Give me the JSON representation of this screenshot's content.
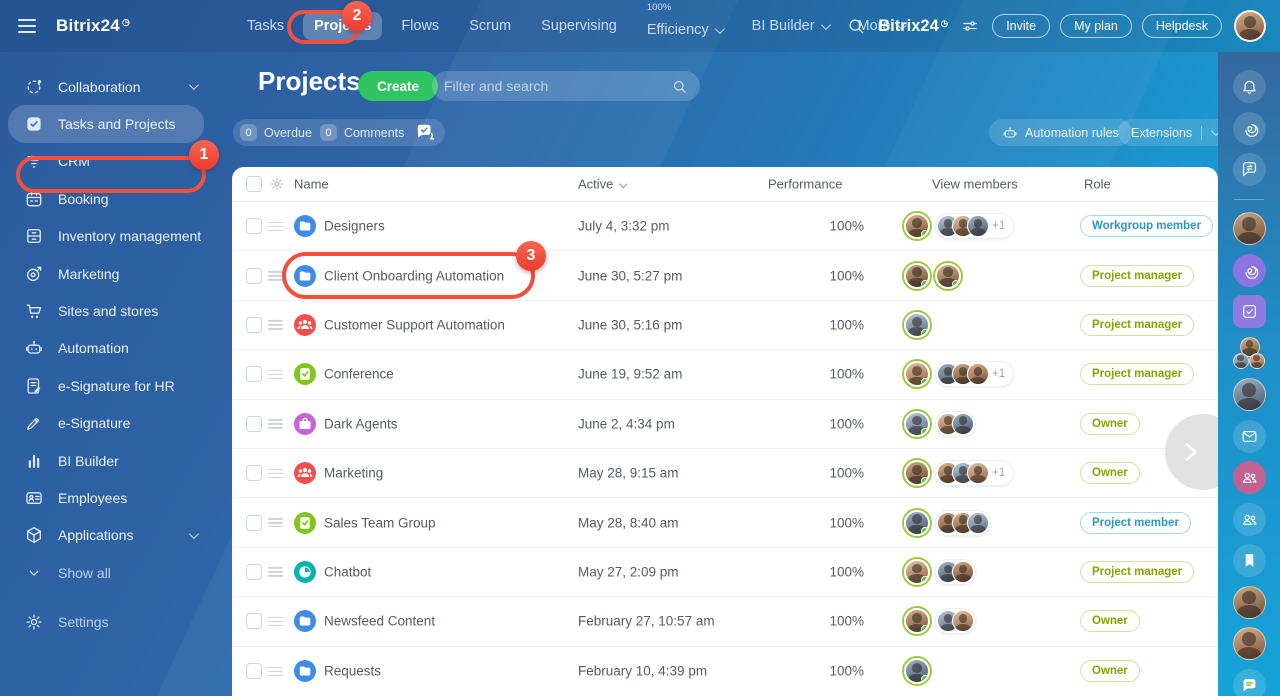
{
  "topbar": {
    "brand": "Bitrix24",
    "brand_mark": "◷",
    "tabs": [
      {
        "label": "Tasks"
      },
      {
        "label": "Projects",
        "active": true
      },
      {
        "label": "Flows"
      },
      {
        "label": "Scrum"
      },
      {
        "label": "Supervising"
      },
      {
        "label": "Efficiency",
        "sup": "100%",
        "chevron": true
      },
      {
        "label": "BI Builder",
        "chevron": true
      },
      {
        "label": "More",
        "chevron": true
      }
    ],
    "search_brand": "Bitrix24",
    "buttons": [
      {
        "label": "Invite"
      },
      {
        "label": "My plan"
      },
      {
        "label": "Helpdesk"
      }
    ]
  },
  "sidebar": {
    "items": [
      {
        "label": "Collaboration",
        "icon": "collab-icon",
        "chevron": true
      },
      {
        "label": "Tasks and Projects",
        "icon": "tasks-icon",
        "active": true
      },
      {
        "label": "CRM",
        "icon": "crm-icon"
      },
      {
        "label": "Booking",
        "icon": "calendar-icon"
      },
      {
        "label": "Inventory management",
        "icon": "inventory-icon"
      },
      {
        "label": "Marketing",
        "icon": "target-icon"
      },
      {
        "label": "Sites and stores",
        "icon": "cart-icon"
      },
      {
        "label": "Automation",
        "icon": "robot-icon"
      },
      {
        "label": "e-Signature for HR",
        "icon": "doc-pen-icon"
      },
      {
        "label": "e-Signature",
        "icon": "pen-icon"
      },
      {
        "label": "BI Builder",
        "icon": "bars-icon"
      },
      {
        "label": "Employees",
        "icon": "id-card-icon"
      },
      {
        "label": "Applications",
        "icon": "cube-icon",
        "chevron": true
      },
      {
        "label": "Show all",
        "icon": "chevron-down-icon",
        "muted": true
      }
    ],
    "settings": {
      "label": "Settings",
      "icon": "gear-icon"
    }
  },
  "header": {
    "title": "Projects",
    "create_label": "Create",
    "filter_placeholder": "Filter and search",
    "counters": [
      {
        "count": "0",
        "label": "Overdue"
      },
      {
        "count": "0",
        "label": "Comments"
      }
    ],
    "automation_button": "Automation rules",
    "extensions_button": "Extensions"
  },
  "table": {
    "columns": [
      "Name",
      "Active",
      "Performance",
      "View members",
      "Role"
    ],
    "rows": [
      {
        "name": "Designers",
        "icon": "folder",
        "icon_color": "#3F8CE4",
        "active": "July 4, 3:32 pm",
        "performance": "100%",
        "members": {
          "leads": 1,
          "pill": 3,
          "plus": "+1"
        },
        "role": {
          "label": "Workgroup member",
          "type": "blue"
        }
      },
      {
        "name": "Client Onboarding Automation",
        "icon": "folder",
        "icon_color": "#3F8CE4",
        "active": "June 30, 5:27 pm",
        "performance": "100%",
        "members": {
          "leads": 2,
          "pill": 0,
          "plus": ""
        },
        "role": {
          "label": "Project manager",
          "type": "green"
        }
      },
      {
        "name": "Customer Support Automation",
        "icon": "people",
        "icon_color": "#F25050",
        "active": "June 30, 5:16 pm",
        "performance": "100%",
        "members": {
          "leads": 1,
          "pill": 0,
          "plus": ""
        },
        "role": {
          "label": "Project manager",
          "type": "green"
        }
      },
      {
        "name": "Conference",
        "icon": "clipboard",
        "icon_color": "#82C51D",
        "active": "June 19, 9:52 am",
        "performance": "100%",
        "members": {
          "leads": 1,
          "pill": 3,
          "plus": "+1"
        },
        "role": {
          "label": "Project manager",
          "type": "green"
        }
      },
      {
        "name": "Dark Agents",
        "icon": "briefcase",
        "icon_color": "#C963D8",
        "active": "June 2, 4:34 pm",
        "performance": "100%",
        "members": {
          "leads": 1,
          "pill": 2,
          "plus": ""
        },
        "role": {
          "label": "Owner",
          "type": "green"
        }
      },
      {
        "name": "Marketing",
        "icon": "people",
        "icon_color": "#F25050",
        "active": "May 28, 9:15 am",
        "performance": "100%",
        "members": {
          "leads": 1,
          "pill": 3,
          "plus": "+1"
        },
        "role": {
          "label": "Owner",
          "type": "green"
        }
      },
      {
        "name": "Sales Team Group",
        "icon": "clipboard",
        "icon_color": "#82C51D",
        "active": "May 28, 8:40 am",
        "performance": "100%",
        "members": {
          "leads": 1,
          "pill": 3,
          "plus": ""
        },
        "role": {
          "label": "Project member",
          "type": "blue"
        }
      },
      {
        "name": "Chatbot",
        "icon": "clock",
        "icon_color": "#00B5AD",
        "active": "May 27, 2:09 pm",
        "performance": "100%",
        "members": {
          "leads": 1,
          "pill": 2,
          "plus": ""
        },
        "role": {
          "label": "Project manager",
          "type": "green"
        }
      },
      {
        "name": "Newsfeed Content",
        "icon": "folder",
        "icon_color": "#3F8CE4",
        "active": "February 27, 10:57 am",
        "performance": "100%",
        "members": {
          "leads": 1,
          "pill": 2,
          "plus": ""
        },
        "role": {
          "label": "Owner",
          "type": "green"
        }
      },
      {
        "name": "Requests",
        "icon": "folder",
        "icon_color": "#3F8CE4",
        "active": "February 10, 4:39 pm",
        "performance": "100%",
        "members": {
          "leads": 1,
          "pill": 0,
          "plus": ""
        },
        "role": {
          "label": "Owner",
          "type": "green"
        }
      }
    ]
  },
  "right_rail": {
    "items": [
      {
        "type": "icon",
        "icon": "bell-icon"
      },
      {
        "type": "icon",
        "icon": "copilot-icon"
      },
      {
        "type": "icon",
        "icon": "chat-arrows-icon"
      },
      {
        "type": "divider"
      },
      {
        "type": "avatar"
      },
      {
        "type": "icon-purple",
        "icon": "copilot-icon"
      },
      {
        "type": "icon-purplesq",
        "icon": "check-square-icon"
      },
      {
        "type": "avatar-cluster"
      },
      {
        "type": "avatar"
      },
      {
        "type": "icon",
        "icon": "mail-icon"
      },
      {
        "type": "icon-pink",
        "icon": "people-icon"
      },
      {
        "type": "icon",
        "icon": "people-icon"
      },
      {
        "type": "icon",
        "icon": "bookmark-icon"
      },
      {
        "type": "avatar"
      },
      {
        "type": "avatar"
      },
      {
        "type": "icon",
        "icon": "chat-lines-icon"
      }
    ]
  },
  "annotations": [
    {
      "number": "1",
      "target": "sidebar Tasks and Projects"
    },
    {
      "number": "2",
      "target": "top nav Projects"
    },
    {
      "number": "3",
      "target": "row Client Onboarding Automation"
    }
  ],
  "theme": {
    "annotation_red": "#F2503E",
    "create_green": "#31C462",
    "role_blue": "#2D96C9",
    "role_green": "#88A203",
    "lead_ring": "#99CA3C",
    "avatar_palette": [
      "linear-gradient(160deg,#d9b28c,#7a5236)",
      "linear-gradient(160deg,#b9c6d6,#5a6c82)",
      "linear-gradient(160deg,#e3c3a2,#936244)",
      "linear-gradient(160deg,#9fb2c4,#46586e)",
      "linear-gradient(160deg,#cdaa86,#6b4a31)"
    ]
  }
}
